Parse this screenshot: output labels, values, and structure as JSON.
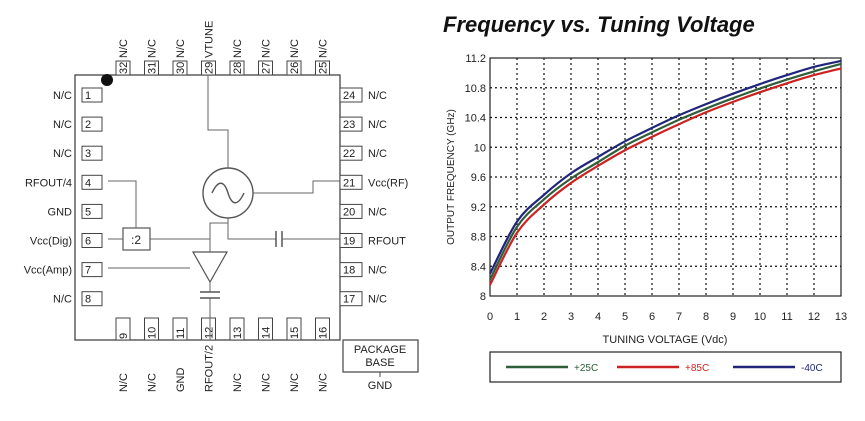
{
  "pinout": {
    "top_pins": [
      {
        "num": "32",
        "label": "N/C"
      },
      {
        "num": "31",
        "label": "N/C"
      },
      {
        "num": "30",
        "label": "N/C"
      },
      {
        "num": "29",
        "label": "VTUNE"
      },
      {
        "num": "28",
        "label": "N/C"
      },
      {
        "num": "27",
        "label": "N/C"
      },
      {
        "num": "26",
        "label": "N/C"
      },
      {
        "num": "25",
        "label": "N/C"
      }
    ],
    "bottom_pins": [
      {
        "num": "9",
        "label": "N/C"
      },
      {
        "num": "10",
        "label": "N/C"
      },
      {
        "num": "11",
        "label": "GND"
      },
      {
        "num": "12",
        "label": "RFOUT/2"
      },
      {
        "num": "13",
        "label": "N/C"
      },
      {
        "num": "14",
        "label": "N/C"
      },
      {
        "num": "15",
        "label": "N/C"
      },
      {
        "num": "16",
        "label": "N/C"
      }
    ],
    "left_pins": [
      {
        "num": "1",
        "label": "N/C"
      },
      {
        "num": "2",
        "label": "N/C"
      },
      {
        "num": "3",
        "label": "N/C"
      },
      {
        "num": "4",
        "label": "RFOUT/4"
      },
      {
        "num": "5",
        "label": "GND"
      },
      {
        "num": "6",
        "label": "Vcc(Dig)"
      },
      {
        "num": "7",
        "label": "Vcc(Amp)"
      },
      {
        "num": "8",
        "label": "N/C"
      }
    ],
    "right_pins": [
      {
        "num": "24",
        "label": "N/C"
      },
      {
        "num": "23",
        "label": "N/C"
      },
      {
        "num": "22",
        "label": "N/C"
      },
      {
        "num": "21",
        "label": "Vcc(RF)"
      },
      {
        "num": "20",
        "label": "N/C"
      },
      {
        "num": "19",
        "label": "RFOUT"
      },
      {
        "num": "18",
        "label": "N/C"
      },
      {
        "num": "17",
        "label": "N/C"
      }
    ],
    "divider_label": ":2",
    "package_base_line1": "PACKAGE",
    "package_base_line2": "BASE",
    "package_gnd": "GND"
  },
  "chart_data": {
    "type": "line",
    "title": "Frequency vs. Tuning Voltage",
    "xlabel": "TUNING VOLTAGE (Vdc)",
    "ylabel": "OUTPUT FREQUENCY (GHz)",
    "xlim": [
      0,
      13
    ],
    "ylim": [
      8,
      11.2
    ],
    "x_ticks": [
      "0",
      "1",
      "2",
      "3",
      "4",
      "5",
      "6",
      "7",
      "8",
      "9",
      "10",
      "11",
      "12",
      "13"
    ],
    "y_ticks": [
      "8",
      "8.4",
      "8.8",
      "9.2",
      "9.6",
      "10",
      "10.4",
      "10.8",
      "11.2"
    ],
    "grid": true,
    "x": [
      0,
      1,
      2,
      3,
      4,
      5,
      6,
      7,
      8,
      9,
      10,
      11,
      12,
      13
    ],
    "series": [
      {
        "name": "+25C",
        "color": "#2e5e3a",
        "values": [
          8.22,
          8.93,
          9.3,
          9.58,
          9.8,
          10.02,
          10.2,
          10.37,
          10.52,
          10.66,
          10.79,
          10.91,
          11.02,
          11.12
        ]
      },
      {
        "name": "+85C",
        "color": "#cc2222",
        "values": [
          8.15,
          8.85,
          9.23,
          9.52,
          9.75,
          9.96,
          10.14,
          10.31,
          10.47,
          10.61,
          10.74,
          10.86,
          10.97,
          11.06
        ]
      },
      {
        "name": "-40C",
        "color": "#22267a",
        "values": [
          8.3,
          9.0,
          9.36,
          9.65,
          9.87,
          10.08,
          10.26,
          10.43,
          10.58,
          10.72,
          10.85,
          10.97,
          11.08,
          11.16
        ]
      }
    ]
  }
}
